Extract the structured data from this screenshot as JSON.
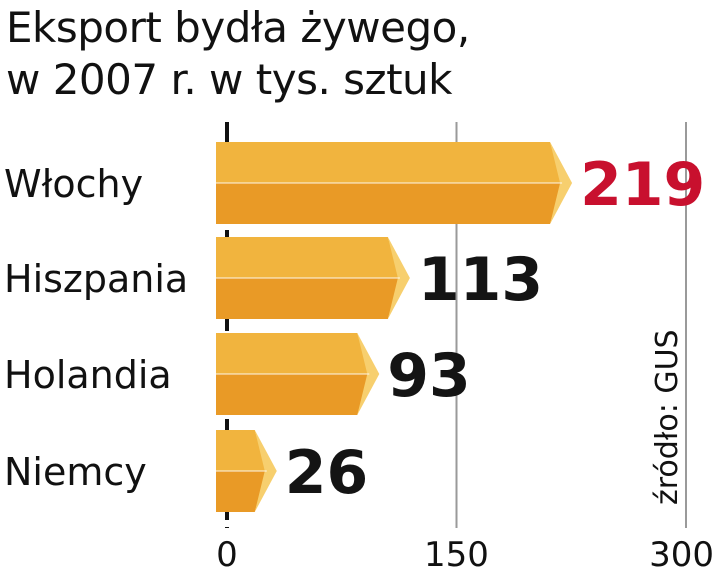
{
  "chart_data": {
    "type": "bar",
    "orientation": "horizontal",
    "title_lines": [
      "Eksport bydła żywego,",
      "w 2007 r. w tys. sztuk"
    ],
    "categories": [
      "Włochy",
      "Hiszpania",
      "Holandia",
      "Niemcy"
    ],
    "values": [
      219,
      113,
      93,
      26
    ],
    "data_labels": [
      "219",
      "113",
      "93",
      "26"
    ],
    "xlim": [
      0,
      300
    ],
    "xticks": [
      "0",
      "150",
      "300"
    ],
    "gridlines_at": [
      150,
      300
    ],
    "source": "źródło: GUS",
    "colors": {
      "bar_top": "#f1b43e",
      "bar_bottom": "#e99a26",
      "bar_end": "#f7cf6e",
      "label": "#141414",
      "highlight_label": "#c8102e",
      "grid": "#9a9a9a",
      "axis": "#111111"
    },
    "highlight_index": 0
  }
}
